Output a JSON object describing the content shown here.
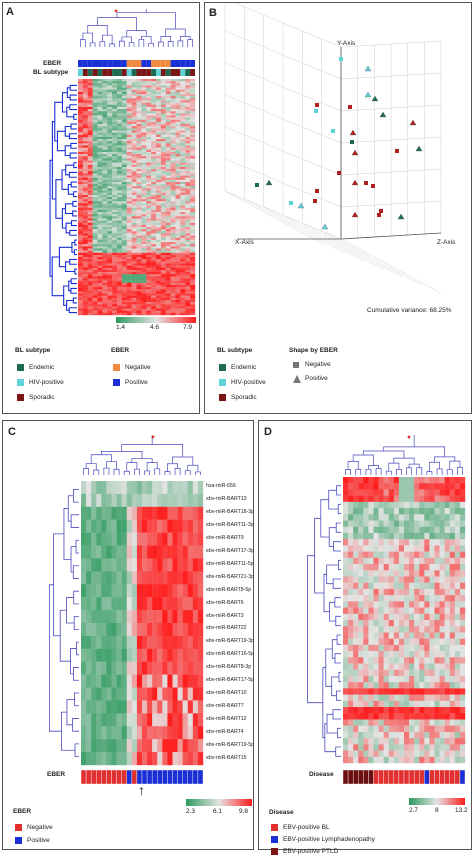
{
  "panels": {
    "A": {
      "label": "A",
      "eber_label": "EBER",
      "subtype_label": "BL subtype",
      "scale_ticks": [
        "1.4",
        "4.6",
        "7.9"
      ],
      "legend_subtype_title": "BL subtype",
      "legend_eber_title": "EBER",
      "legend_subtype_items": [
        "Endemic",
        "HIV-positive",
        "Sporadic"
      ],
      "legend_eber_items": [
        "Negative",
        "Positive"
      ]
    },
    "B": {
      "label": "B",
      "y_axis": "Y-Axis",
      "x_axis": "X-Axis",
      "z_axis": "Z-Axis",
      "variance": "Cumulative variance: 68.25%",
      "legend_subtype_title": "BL subtype",
      "legend_subtype_items": [
        "Endemic",
        "HIV-positive",
        "Sporadic"
      ],
      "legend_shape_title": "Shape by EBER",
      "legend_shape_items": [
        "Negative",
        "Positive"
      ]
    },
    "C": {
      "label": "C",
      "mirnas": [
        "hsa-miR-659",
        "ebv-miR-BART13",
        "ebv-miR-BART18-3p",
        "ebv-miR-BART11-3p",
        "ebv-miR-BART9",
        "ebv-miR-BART17-3p",
        "ebv-miR-BART11-5p",
        "ebv-miR-BART21-3p",
        "ebv-miR-BART8-5p",
        "ebv-miR-BART6",
        "ebv-miR-BART3",
        "ebv-miR-BART22",
        "ebv-miR-BART19-3p",
        "ebv-miR-BART16-5p",
        "ebv-miR-BART8-3p",
        "ebv-miR-BART17-5p",
        "ebv-miR-BART10",
        "ebv-miR-BART7",
        "ebv-miR-BART12",
        "ebv-miR-BART4",
        "ebv-miR-BART19-5p",
        "ebv-miR-BART15"
      ],
      "eber_label": "EBER",
      "scale_ticks": [
        "2.3",
        "6.1",
        "9.8"
      ],
      "legend_title": "EBER",
      "legend_items": [
        "Negative",
        "Positive"
      ]
    },
    "D": {
      "label": "D",
      "disease_label": "Disease",
      "scale_ticks": [
        "2.7",
        "8",
        "13.2"
      ],
      "legend_title": "Disease",
      "legend_items": [
        "EBV-positive BL",
        "EBV-positive Lymphadenopathy",
        "EBV-positive PTLD"
      ]
    }
  },
  "colors": {
    "endemic": "#1f6b4f",
    "hiv": "#5fd3d8",
    "sporadic": "#7a1616",
    "negative": "#e03030",
    "positive": "#1a2fd6",
    "orange": "#f08a40",
    "heat_low": "#2e9a5e",
    "heat_mid": "#e4e4e4",
    "heat_high": "#ff1c1c"
  }
}
